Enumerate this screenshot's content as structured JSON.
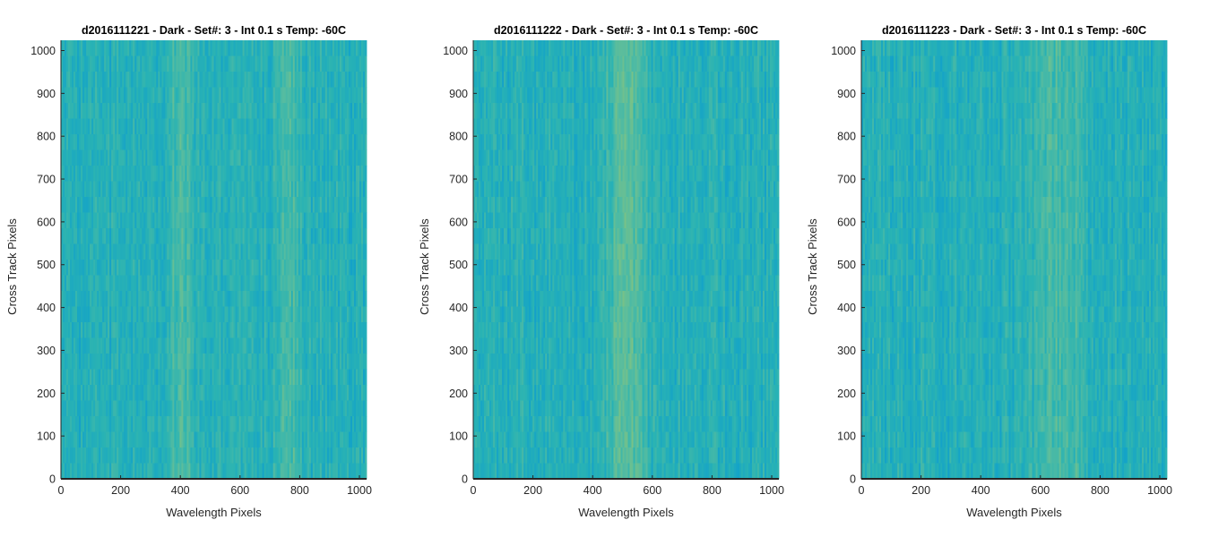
{
  "figure": {
    "colors": {
      "background": "#ffffff",
      "axis": "#262626",
      "colormap": [
        "#1f86d3",
        "#14a3c8",
        "#2ab3b3",
        "#56bca0",
        "#8cc579",
        "#b6c85f"
      ]
    }
  },
  "chart_data": [
    {
      "type": "heatmap",
      "title": "d2016111221 - Dark - Set#: 3 - Int 0.1 s Temp: -60C",
      "xlabel": "Wavelength Pixels",
      "ylabel": "Cross Track Pixels",
      "xlim": [
        0,
        1024
      ],
      "ylim": [
        0,
        1024
      ],
      "xticks": [
        0,
        200,
        400,
        600,
        800,
        1000
      ],
      "yticks": [
        0,
        100,
        200,
        300,
        400,
        500,
        600,
        700,
        800,
        900,
        1000
      ],
      "xtick_labels": [
        "0",
        "200",
        "400",
        "600",
        "800",
        "1000"
      ],
      "ytick_labels": [
        "0",
        "100",
        "200",
        "300",
        "400",
        "500",
        "600",
        "700",
        "800",
        "900",
        "1000"
      ],
      "colormap": "parula",
      "brighter_bands_at_x": [
        400,
        770
      ]
    },
    {
      "type": "heatmap",
      "title": "d2016111222 - Dark - Set#: 3 - Int 0.1 s Temp: -60C",
      "xlabel": "Wavelength Pixels",
      "ylabel": "Cross Track Pixels",
      "xlim": [
        0,
        1024
      ],
      "ylim": [
        0,
        1024
      ],
      "xticks": [
        0,
        200,
        400,
        600,
        800,
        1000
      ],
      "yticks": [
        0,
        100,
        200,
        300,
        400,
        500,
        600,
        700,
        800,
        900,
        1000
      ],
      "xtick_labels": [
        "0",
        "200",
        "400",
        "600",
        "800",
        "1000"
      ],
      "ytick_labels": [
        "0",
        "100",
        "200",
        "300",
        "400",
        "500",
        "600",
        "700",
        "800",
        "900",
        "1000"
      ],
      "colormap": "parula",
      "brighter_bands_at_x": [
        480,
        540
      ]
    },
    {
      "type": "heatmap",
      "title": "d2016111223 - Dark - Set#: 3 - Int 0.1 s Temp: -60C",
      "xlabel": "Wavelength Pixels",
      "ylabel": "Cross Track Pixels",
      "xlim": [
        0,
        1024
      ],
      "ylim": [
        0,
        1024
      ],
      "xticks": [
        0,
        200,
        400,
        600,
        800,
        1000
      ],
      "yticks": [
        0,
        100,
        200,
        300,
        400,
        500,
        600,
        700,
        800,
        900,
        1000
      ],
      "xtick_labels": [
        "0",
        "200",
        "400",
        "600",
        "800",
        "1000"
      ],
      "ytick_labels": [
        "0",
        "100",
        "200",
        "300",
        "400",
        "500",
        "600",
        "700",
        "800",
        "900",
        "1000"
      ],
      "colormap": "parula",
      "brighter_bands_at_x": [
        620,
        700
      ]
    }
  ]
}
